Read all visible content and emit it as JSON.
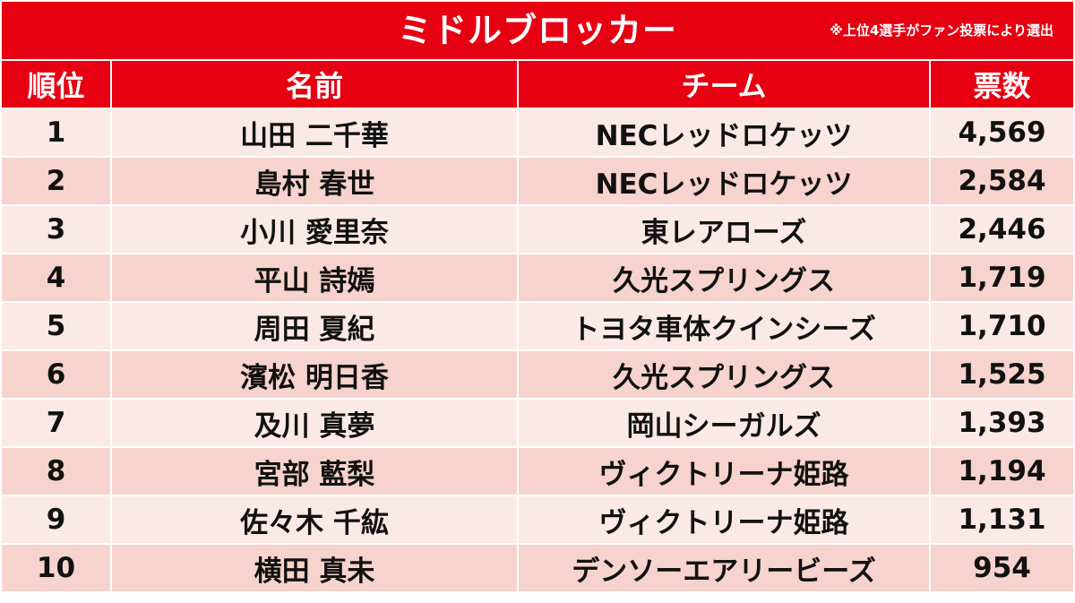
{
  "title": "ミドルブロッカー",
  "note": "※上位4選手がファン投票により選出",
  "colors": {
    "header_red": "#e60012",
    "row_light": "#fbe9e7",
    "row_dark": "#f6d3cc"
  },
  "headers": {
    "rank": "順位",
    "name": "名前",
    "team": "チーム",
    "votes": "票数"
  },
  "rows": [
    {
      "rank": "1",
      "name": "山田 二千華",
      "team": "NECレッドロケッツ",
      "votes": "4,569"
    },
    {
      "rank": "2",
      "name": "島村 春世",
      "team": "NECレッドロケッツ",
      "votes": "2,584"
    },
    {
      "rank": "3",
      "name": "小川 愛里奈",
      "team": "東レアローズ",
      "votes": "2,446"
    },
    {
      "rank": "4",
      "name": "平山 詩嫣",
      "team": "久光スプリングス",
      "votes": "1,719"
    },
    {
      "rank": "5",
      "name": "周田 夏紀",
      "team": "トヨタ車体クインシーズ",
      "votes": "1,710"
    },
    {
      "rank": "6",
      "name": "濱松 明日香",
      "team": "久光スプリングス",
      "votes": "1,525"
    },
    {
      "rank": "7",
      "name": "及川 真夢",
      "team": "岡山シーガルズ",
      "votes": "1,393"
    },
    {
      "rank": "8",
      "name": "宮部 藍梨",
      "team": "ヴィクトリーナ姫路",
      "votes": "1,194"
    },
    {
      "rank": "9",
      "name": "佐々木 千紘",
      "team": "ヴィクトリーナ姫路",
      "votes": "1,131"
    },
    {
      "rank": "10",
      "name": "横田 真未",
      "team": "デンソーエアリービーズ",
      "votes": "954"
    }
  ]
}
